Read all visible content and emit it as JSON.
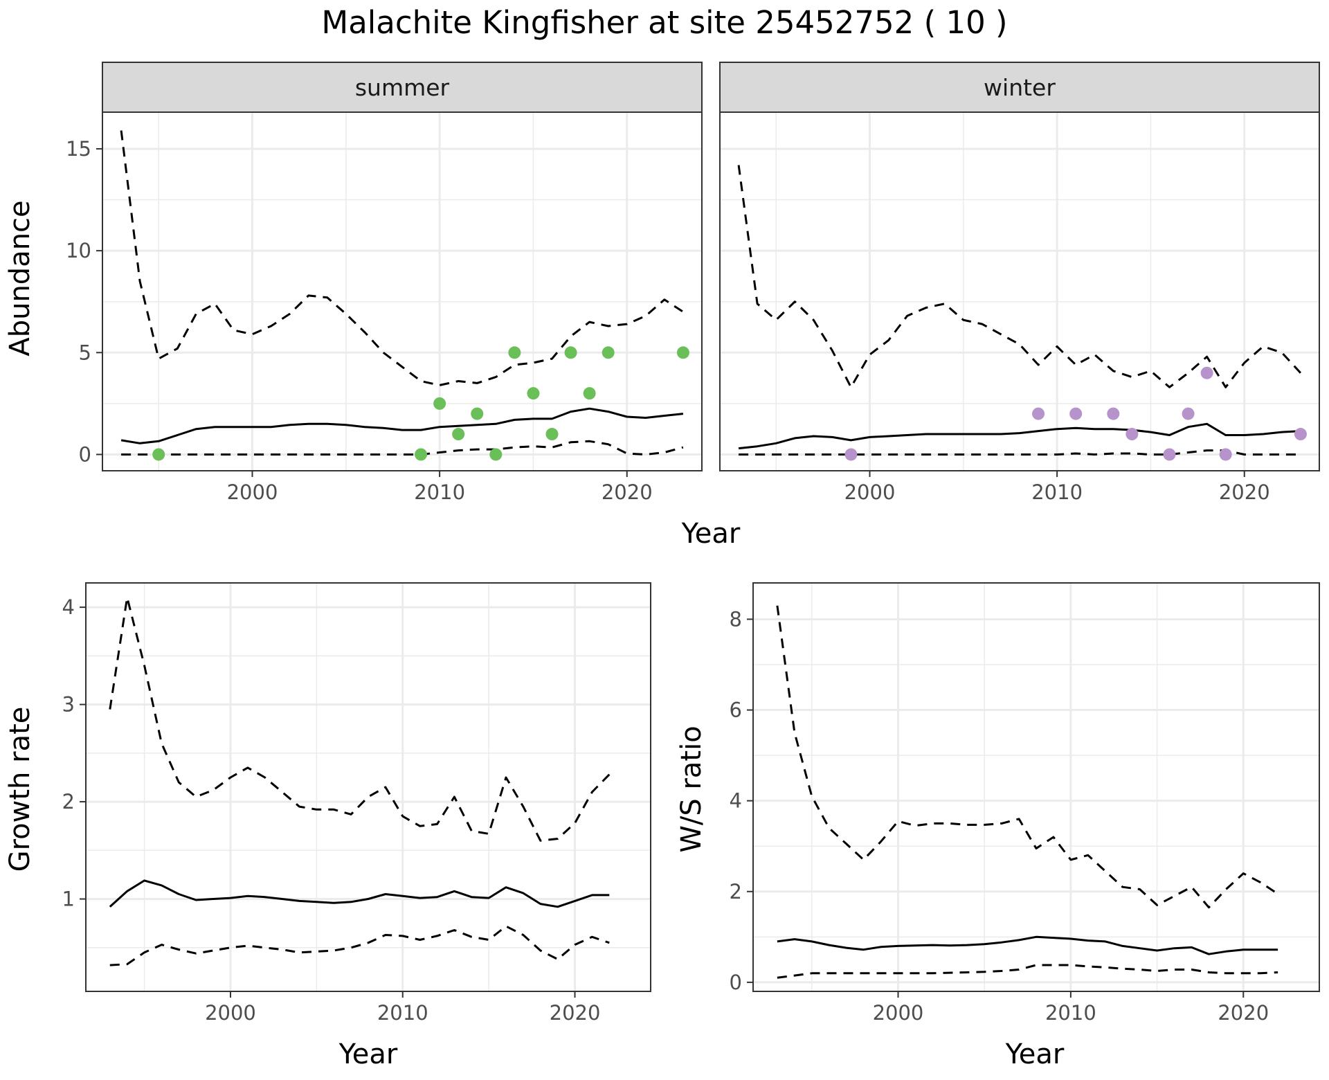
{
  "title": "Malachite Kingfisher at site 25452752 ( 10 )",
  "colors": {
    "summer_points": "#6abf59",
    "winter_points": "#b793cc",
    "line": "#000000",
    "grid": "#ebebeb",
    "strip_fill": "#d9d9d9"
  },
  "chart_data": [
    {
      "type": "line",
      "facet": "summer",
      "xlabel": "Year",
      "ylabel": "Abundance",
      "xlim": [
        1992,
        2024
      ],
      "ylim": [
        -0.8,
        16.8
      ],
      "x_ticks": [
        2000,
        2010,
        2020
      ],
      "y_ticks": [
        0,
        5,
        10,
        15
      ],
      "grid": true,
      "x": [
        1993,
        1994,
        1995,
        1996,
        1997,
        1998,
        1999,
        2000,
        2001,
        2002,
        2003,
        2004,
        2005,
        2006,
        2007,
        2008,
        2009,
        2010,
        2011,
        2012,
        2013,
        2014,
        2015,
        2016,
        2017,
        2018,
        2019,
        2020,
        2021,
        2022,
        2023
      ],
      "series": [
        {
          "role": "estimate",
          "style": "solid",
          "values": [
            0.7,
            0.55,
            0.65,
            0.95,
            1.25,
            1.35,
            1.35,
            1.35,
            1.35,
            1.45,
            1.5,
            1.5,
            1.45,
            1.35,
            1.3,
            1.2,
            1.2,
            1.35,
            1.4,
            1.45,
            1.5,
            1.7,
            1.75,
            1.75,
            2.1,
            2.25,
            2.1,
            1.85,
            1.8,
            1.9,
            2.0
          ]
        },
        {
          "role": "upper",
          "style": "dashed",
          "values": [
            15.9,
            8.5,
            4.7,
            5.2,
            6.9,
            7.4,
            6.1,
            5.9,
            6.3,
            6.9,
            7.8,
            7.7,
            6.9,
            6.0,
            5.0,
            4.3,
            3.6,
            3.4,
            3.6,
            3.5,
            3.8,
            4.4,
            4.5,
            4.7,
            5.8,
            6.5,
            6.3,
            6.4,
            6.8,
            7.6,
            7.0
          ]
        },
        {
          "role": "lower",
          "style": "dashed",
          "values": [
            0,
            0,
            0,
            0,
            0,
            0,
            0,
            0,
            0,
            0,
            0,
            0,
            0,
            0,
            0,
            0,
            0,
            0.1,
            0.2,
            0.25,
            0.25,
            0.35,
            0.4,
            0.35,
            0.6,
            0.65,
            0.5,
            0.05,
            0.0,
            0.1,
            0.35
          ]
        }
      ],
      "points": {
        "x": [
          1995,
          2009,
          2010,
          2011,
          2012,
          2013,
          2014,
          2015,
          2016,
          2017,
          2018,
          2019,
          2023
        ],
        "y": [
          0,
          0,
          2.5,
          1,
          2,
          0,
          5,
          3,
          1,
          5,
          3,
          5,
          5
        ]
      }
    },
    {
      "type": "line",
      "facet": "winter",
      "xlabel": "Year",
      "ylabel": "Abundance",
      "xlim": [
        1992,
        2024
      ],
      "ylim": [
        -0.8,
        16.8
      ],
      "x_ticks": [
        2000,
        2010,
        2020
      ],
      "y_ticks": [
        0,
        5,
        10,
        15
      ],
      "grid": true,
      "x": [
        1993,
        1994,
        1995,
        1996,
        1997,
        1998,
        1999,
        2000,
        2001,
        2002,
        2003,
        2004,
        2005,
        2006,
        2007,
        2008,
        2009,
        2010,
        2011,
        2012,
        2013,
        2014,
        2015,
        2016,
        2017,
        2018,
        2019,
        2020,
        2021,
        2022,
        2023
      ],
      "series": [
        {
          "role": "estimate",
          "style": "solid",
          "values": [
            0.3,
            0.4,
            0.55,
            0.8,
            0.9,
            0.85,
            0.7,
            0.85,
            0.9,
            0.95,
            1.0,
            1.0,
            1.0,
            1.0,
            1.0,
            1.05,
            1.15,
            1.25,
            1.3,
            1.25,
            1.25,
            1.2,
            1.1,
            0.95,
            1.35,
            1.5,
            0.95,
            0.95,
            1.0,
            1.1,
            1.15
          ]
        },
        {
          "role": "upper",
          "style": "dashed",
          "values": [
            14.2,
            7.4,
            6.6,
            7.5,
            6.6,
            5.1,
            3.3,
            4.9,
            5.6,
            6.8,
            7.2,
            7.4,
            6.6,
            6.4,
            5.9,
            5.4,
            4.4,
            5.3,
            4.4,
            4.9,
            4.1,
            3.8,
            4.1,
            3.3,
            4.0,
            4.8,
            3.3,
            4.5,
            5.3,
            5.0,
            4.0
          ]
        },
        {
          "role": "lower",
          "style": "dashed",
          "values": [
            0,
            0,
            0,
            0,
            0,
            0,
            0,
            0,
            0,
            0,
            0,
            0,
            0,
            0,
            0,
            0,
            0,
            0,
            0.05,
            0,
            0.05,
            0.05,
            0,
            0,
            0.1,
            0.2,
            0.2,
            0,
            0,
            0,
            0
          ]
        }
      ],
      "points": {
        "x": [
          1999,
          2009,
          2011,
          2013,
          2014,
          2016,
          2017,
          2018,
          2019,
          2023
        ],
        "y": [
          0,
          2,
          2,
          2,
          1,
          0,
          2,
          4,
          0,
          1
        ]
      }
    },
    {
      "type": "line",
      "xlabel": "Year",
      "ylabel": "Growth rate",
      "xlim": [
        1991.6,
        2024.4
      ],
      "ylim": [
        0.05,
        4.25
      ],
      "x_ticks": [
        2000,
        2010,
        2020
      ],
      "y_ticks": [
        1,
        2,
        3,
        4
      ],
      "grid": true,
      "x": [
        1993,
        1994,
        1995,
        1996,
        1997,
        1998,
        1999,
        2000,
        2001,
        2002,
        2003,
        2004,
        2005,
        2006,
        2007,
        2008,
        2009,
        2010,
        2011,
        2012,
        2013,
        2014,
        2015,
        2016,
        2017,
        2018,
        2019,
        2020,
        2021,
        2022
      ],
      "series": [
        {
          "role": "estimate",
          "style": "solid",
          "values": [
            0.92,
            1.08,
            1.19,
            1.14,
            1.05,
            0.99,
            1.0,
            1.01,
            1.03,
            1.02,
            1.0,
            0.98,
            0.97,
            0.96,
            0.97,
            1.0,
            1.05,
            1.03,
            1.01,
            1.02,
            1.08,
            1.02,
            1.01,
            1.12,
            1.06,
            0.95,
            0.92,
            0.98,
            1.04,
            1.04
          ]
        },
        {
          "role": "upper",
          "style": "dashed",
          "values": [
            2.95,
            4.1,
            3.4,
            2.6,
            2.2,
            2.05,
            2.12,
            2.25,
            2.35,
            2.25,
            2.1,
            1.95,
            1.92,
            1.92,
            1.87,
            2.05,
            2.15,
            1.85,
            1.75,
            1.77,
            2.05,
            1.7,
            1.67,
            2.25,
            1.95,
            1.6,
            1.62,
            1.78,
            2.1,
            2.28
          ]
        },
        {
          "role": "lower",
          "style": "dashed",
          "values": [
            0.32,
            0.33,
            0.45,
            0.53,
            0.48,
            0.44,
            0.47,
            0.5,
            0.52,
            0.5,
            0.48,
            0.45,
            0.46,
            0.47,
            0.5,
            0.55,
            0.63,
            0.62,
            0.58,
            0.62,
            0.68,
            0.61,
            0.58,
            0.72,
            0.63,
            0.47,
            0.38,
            0.53,
            0.61,
            0.55
          ]
        }
      ]
    },
    {
      "type": "line",
      "xlabel": "Year",
      "ylabel": "W/S ratio",
      "xlim": [
        1991.6,
        2024.4
      ],
      "ylim": [
        -0.2,
        8.8
      ],
      "x_ticks": [
        2000,
        2010,
        2020
      ],
      "y_ticks": [
        0,
        2,
        4,
        6,
        8
      ],
      "grid": true,
      "x": [
        1993,
        1994,
        1995,
        1996,
        1997,
        1998,
        1999,
        2000,
        2001,
        2002,
        2003,
        2004,
        2005,
        2006,
        2007,
        2008,
        2009,
        2010,
        2011,
        2012,
        2013,
        2014,
        2015,
        2016,
        2017,
        2018,
        2019,
        2020,
        2021,
        2022
      ],
      "series": [
        {
          "role": "estimate",
          "style": "solid",
          "values": [
            0.9,
            0.95,
            0.9,
            0.82,
            0.76,
            0.72,
            0.78,
            0.8,
            0.81,
            0.82,
            0.81,
            0.82,
            0.84,
            0.88,
            0.93,
            1.0,
            0.98,
            0.96,
            0.92,
            0.9,
            0.8,
            0.75,
            0.7,
            0.75,
            0.77,
            0.62,
            0.68,
            0.72,
            0.72,
            0.72
          ]
        },
        {
          "role": "upper",
          "style": "dashed",
          "values": [
            8.3,
            5.5,
            4.1,
            3.4,
            3.05,
            2.7,
            3.1,
            3.55,
            3.45,
            3.5,
            3.5,
            3.47,
            3.47,
            3.5,
            3.6,
            2.95,
            3.2,
            2.7,
            2.8,
            2.45,
            2.1,
            2.05,
            1.7,
            1.9,
            2.1,
            1.65,
            2.05,
            2.4,
            2.2,
            1.95
          ]
        },
        {
          "role": "lower",
          "style": "dashed",
          "values": [
            0.1,
            0.15,
            0.2,
            0.2,
            0.2,
            0.2,
            0.2,
            0.2,
            0.2,
            0.2,
            0.21,
            0.22,
            0.23,
            0.25,
            0.28,
            0.38,
            0.38,
            0.38,
            0.35,
            0.33,
            0.3,
            0.28,
            0.25,
            0.28,
            0.28,
            0.22,
            0.2,
            0.2,
            0.2,
            0.22
          ]
        }
      ]
    }
  ]
}
